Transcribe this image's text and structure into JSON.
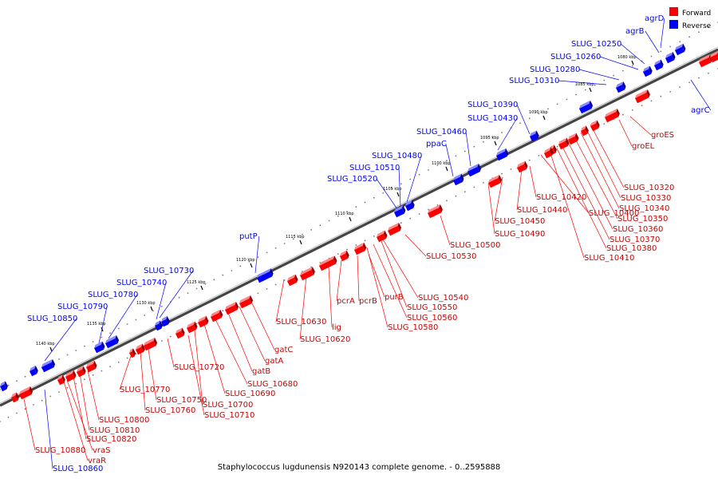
{
  "caption": "Staphylococcus lugdunensis N920143 complete genome. - 0..2595888",
  "legend": [
    {
      "label": "Forward",
      "color": "#ff0000"
    },
    {
      "label": "Reverse",
      "color": "#0000ff"
    }
  ],
  "colors": {
    "forward": "#ff0000",
    "reverse": "#0000ff",
    "backbone": "#555555"
  },
  "tick_labels": [
    "1080 kbp",
    "1085 kbp",
    "1090 kbp",
    "1095 kbp",
    "1100 kbp",
    "1105 kbp",
    "1110 kbp",
    "1115 kbp",
    "1120 kbp",
    "1125 kbp",
    "1130 kbp",
    "1135 kbp",
    "1140 kbp"
  ],
  "reverse_labels": [
    "agrD",
    "agrB",
    "SLUG_10250",
    "SLUG_10260",
    "SLUG_10280",
    "SLUG_10310",
    "agrC",
    "SLUG_10390",
    "SLUG_10430",
    "SLUG_10460",
    "ppaC",
    "SLUG_10480",
    "SLUG_10510",
    "SLUG_10520",
    "putP",
    "SLUG_10730",
    "SLUG_10740",
    "SLUG_10780",
    "SLUG_10790",
    "SLUG_10850",
    "SLUG_10860"
  ],
  "forward_labels": [
    "groES",
    "groEL",
    "SLUG_10320",
    "SLUG_10330",
    "SLUG_10340",
    "SLUG_10350",
    "SLUG_10360",
    "SLUG_10370",
    "SLUG_10380",
    "SLUG_10410",
    "SLUG_10400",
    "SLUG_10420",
    "SLUG_10440",
    "SLUG_10450",
    "SLUG_10490",
    "SLUG_10500",
    "SLUG_10530",
    "SLUG_10540",
    "SLUG_10550",
    "SLUG_10560",
    "SLUG_10580",
    "purB",
    "pcrB",
    "pcrA",
    "lig",
    "SLUG_10620",
    "SLUG_10630",
    "gatC",
    "gatA",
    "gatB",
    "SLUG_10680",
    "SLUG_10690",
    "SLUG_10700",
    "SLUG_10710",
    "SLUG_10720",
    "SLUG_10750",
    "SLUG_10760",
    "SLUG_10770",
    "SLUG_10800",
    "SLUG_10810",
    "SLUG_10820",
    "vraS",
    "vraR",
    "SLUG_10880"
  ]
}
